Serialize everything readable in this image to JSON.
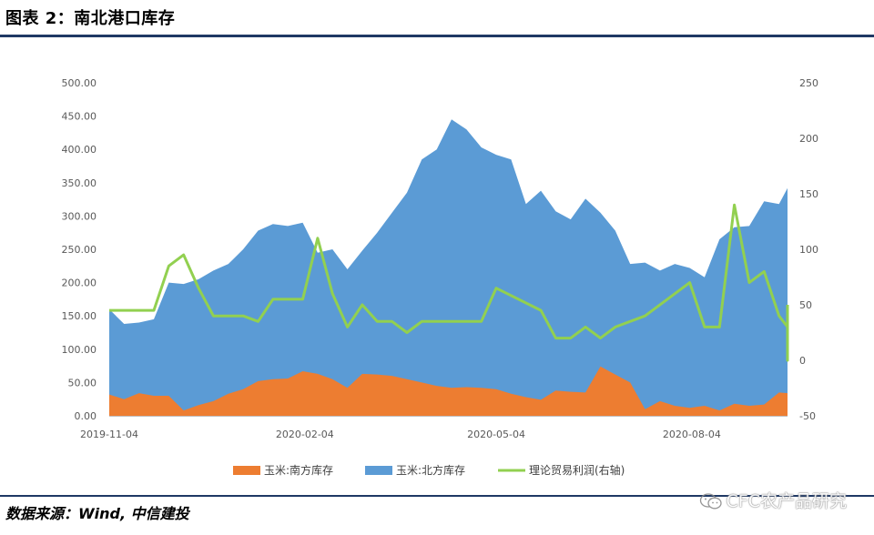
{
  "header": {
    "title": "图表 2：南北港口库存"
  },
  "footer": {
    "source": "数据来源：Wind, 中信建投",
    "watermark": "CFC农产品研究"
  },
  "colors": {
    "south": "#ed7d31",
    "north": "#5b9bd5",
    "profit": "#92d050",
    "rule": "#1f3864"
  },
  "chart_data": {
    "type": "area",
    "title": "",
    "xlabel": "",
    "ylabel": "",
    "y_left_lim": [
      0,
      500
    ],
    "y_right_lim": [
      -50,
      250
    ],
    "y_left_ticks": [
      "0.00",
      "50.00",
      "100.00",
      "150.00",
      "200.00",
      "250.00",
      "300.00",
      "350.00",
      "400.00",
      "450.00",
      "500.00"
    ],
    "y_right_ticks": [
      "-50",
      "0",
      "50",
      "100",
      "150",
      "200",
      "250"
    ],
    "x_range": [
      "2019-11-04",
      "2020-09-18"
    ],
    "x_ticks": [
      "2019-11-04",
      "2020-02-04",
      "2020-05-04",
      "2020-08-04"
    ],
    "legend": {
      "position": "bottom"
    },
    "grid": false,
    "series": [
      {
        "name": "玉米:南方库存",
        "type": "area",
        "axis": "left",
        "points": [
          [
            "2019-11-04",
            32
          ],
          [
            "2019-11-11",
            25
          ],
          [
            "2019-11-18",
            34
          ],
          [
            "2019-11-25",
            30
          ],
          [
            "2019-12-02",
            30
          ],
          [
            "2019-12-09",
            8
          ],
          [
            "2019-12-16",
            16
          ],
          [
            "2019-12-23",
            22
          ],
          [
            "2019-12-30",
            33
          ],
          [
            "2020-01-06",
            40
          ],
          [
            "2020-01-13",
            52
          ],
          [
            "2020-01-20",
            55
          ],
          [
            "2020-01-27",
            56
          ],
          [
            "2020-02-03",
            67
          ],
          [
            "2020-02-10",
            63
          ],
          [
            "2020-02-17",
            55
          ],
          [
            "2020-02-24",
            42
          ],
          [
            "2020-03-02",
            63
          ],
          [
            "2020-03-09",
            62
          ],
          [
            "2020-03-16",
            60
          ],
          [
            "2020-03-23",
            55
          ],
          [
            "2020-03-30",
            50
          ],
          [
            "2020-04-06",
            45
          ],
          [
            "2020-04-13",
            42
          ],
          [
            "2020-04-20",
            43
          ],
          [
            "2020-04-27",
            42
          ],
          [
            "2020-05-04",
            40
          ],
          [
            "2020-05-11",
            33
          ],
          [
            "2020-05-18",
            28
          ],
          [
            "2020-05-25",
            24
          ],
          [
            "2020-06-01",
            38
          ],
          [
            "2020-06-08",
            36
          ],
          [
            "2020-06-15",
            35
          ],
          [
            "2020-06-22",
            74
          ],
          [
            "2020-06-29",
            62
          ],
          [
            "2020-07-06",
            50
          ],
          [
            "2020-07-13",
            10
          ],
          [
            "2020-07-20",
            22
          ],
          [
            "2020-07-27",
            15
          ],
          [
            "2020-08-03",
            12
          ],
          [
            "2020-08-10",
            15
          ],
          [
            "2020-08-17",
            8
          ],
          [
            "2020-08-24",
            18
          ],
          [
            "2020-08-31",
            15
          ],
          [
            "2020-09-07",
            17
          ],
          [
            "2020-09-14",
            35
          ],
          [
            "2020-09-21",
            34
          ],
          [
            "2020-09-28",
            34
          ]
        ]
      },
      {
        "name": "玉米:北方库存",
        "type": "area",
        "axis": "left",
        "stacked_total_points": [
          [
            "2019-11-04",
            160
          ],
          [
            "2019-11-11",
            138
          ],
          [
            "2019-11-18",
            140
          ],
          [
            "2019-11-25",
            145
          ],
          [
            "2019-12-02",
            200
          ],
          [
            "2019-12-09",
            198
          ],
          [
            "2019-12-16",
            205
          ],
          [
            "2019-12-23",
            218
          ],
          [
            "2019-12-30",
            228
          ],
          [
            "2020-01-06",
            250
          ],
          [
            "2020-01-13",
            278
          ],
          [
            "2020-01-20",
            288
          ],
          [
            "2020-01-27",
            285
          ],
          [
            "2020-02-03",
            290
          ],
          [
            "2020-02-10",
            245
          ],
          [
            "2020-02-17",
            250
          ],
          [
            "2020-02-24",
            220
          ],
          [
            "2020-03-02",
            248
          ],
          [
            "2020-03-09",
            275
          ],
          [
            "2020-03-16",
            305
          ],
          [
            "2020-03-23",
            335
          ],
          [
            "2020-03-30",
            385
          ],
          [
            "2020-04-06",
            400
          ],
          [
            "2020-04-13",
            445
          ],
          [
            "2020-04-20",
            430
          ],
          [
            "2020-04-27",
            403
          ],
          [
            "2020-05-04",
            392
          ],
          [
            "2020-05-11",
            385
          ],
          [
            "2020-05-18",
            318
          ],
          [
            "2020-05-25",
            338
          ],
          [
            "2020-06-01",
            307
          ],
          [
            "2020-06-08",
            295
          ],
          [
            "2020-06-15",
            326
          ],
          [
            "2020-06-22",
            305
          ],
          [
            "2020-06-29",
            278
          ],
          [
            "2020-07-06",
            228
          ],
          [
            "2020-07-13",
            230
          ],
          [
            "2020-07-20",
            218
          ],
          [
            "2020-07-27",
            228
          ],
          [
            "2020-08-03",
            222
          ],
          [
            "2020-08-10",
            208
          ],
          [
            "2020-08-17",
            265
          ],
          [
            "2020-08-24",
            283
          ],
          [
            "2020-08-31",
            285
          ],
          [
            "2020-09-07",
            322
          ],
          [
            "2020-09-14",
            318
          ],
          [
            "2020-09-21",
            342
          ],
          [
            "2020-09-28",
            342
          ]
        ]
      },
      {
        "name": "理论贸易利润(右轴)",
        "type": "line",
        "axis": "right",
        "points": [
          [
            "2019-11-04",
            45
          ],
          [
            "2019-11-18",
            45
          ],
          [
            "2019-11-25",
            45
          ],
          [
            "2019-12-02",
            85
          ],
          [
            "2019-12-09",
            95
          ],
          [
            "2019-12-16",
            65
          ],
          [
            "2019-12-23",
            40
          ],
          [
            "2020-01-06",
            40
          ],
          [
            "2020-01-13",
            35
          ],
          [
            "2020-01-20",
            55
          ],
          [
            "2020-02-03",
            55
          ],
          [
            "2020-02-10",
            110
          ],
          [
            "2020-02-17",
            60
          ],
          [
            "2020-02-24",
            30
          ],
          [
            "2020-03-02",
            50
          ],
          [
            "2020-03-09",
            35
          ],
          [
            "2020-03-16",
            35
          ],
          [
            "2020-03-23",
            25
          ],
          [
            "2020-03-30",
            35
          ],
          [
            "2020-04-27",
            35
          ],
          [
            "2020-05-04",
            65
          ],
          [
            "2020-05-25",
            45
          ],
          [
            "2020-06-01",
            20
          ],
          [
            "2020-06-08",
            20
          ],
          [
            "2020-06-15",
            30
          ],
          [
            "2020-06-22",
            20
          ],
          [
            "2020-06-29",
            30
          ],
          [
            "2020-07-13",
            40
          ],
          [
            "2020-07-27",
            60
          ],
          [
            "2020-08-03",
            70
          ],
          [
            "2020-08-10",
            30
          ],
          [
            "2020-08-17",
            30
          ],
          [
            "2020-08-24",
            140
          ],
          [
            "2020-08-31",
            70
          ],
          [
            "2020-09-07",
            80
          ],
          [
            "2020-09-14",
            40
          ],
          [
            "2020-09-21",
            30
          ],
          [
            "2020-09-24",
            0
          ],
          [
            "2020-09-28",
            50
          ]
        ]
      }
    ]
  }
}
